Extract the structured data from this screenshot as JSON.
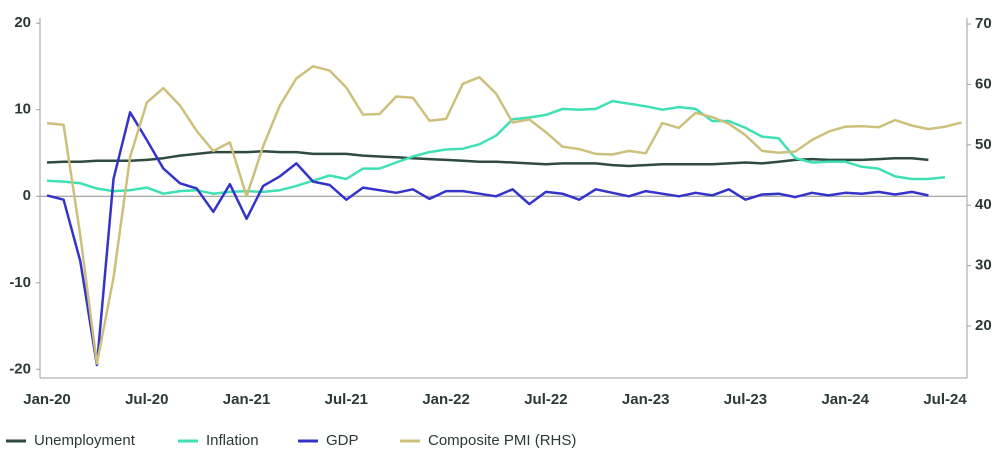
{
  "chart_data": {
    "type": "line",
    "categories": [
      "Jan-20",
      null,
      null,
      null,
      null,
      null,
      "Jul-20",
      null,
      null,
      null,
      null,
      null,
      "Jan-21",
      null,
      null,
      null,
      null,
      null,
      "Jul-21",
      null,
      null,
      null,
      null,
      null,
      "Jan-22",
      null,
      null,
      null,
      null,
      null,
      "Jul-22",
      null,
      null,
      null,
      null,
      null,
      "Jan-23",
      null,
      null,
      null,
      null,
      null,
      "Jul-23",
      null,
      null,
      null,
      null,
      null,
      "Jan-24",
      null,
      null,
      null,
      null,
      null,
      "Jul-24",
      null
    ],
    "series": [
      {
        "name": "Unemployment",
        "color": "#2f4a3e",
        "values": [
          3.9,
          4.0,
          4.0,
          4.1,
          4.1,
          4.1,
          4.2,
          4.4,
          4.7,
          4.9,
          5.1,
          5.1,
          5.1,
          5.2,
          5.1,
          5.1,
          4.9,
          4.9,
          4.9,
          4.7,
          4.6,
          4.5,
          4.4,
          4.3,
          4.2,
          4.1,
          4.0,
          4.0,
          3.9,
          3.8,
          3.7,
          3.8,
          3.8,
          3.8,
          3.6,
          3.5,
          3.6,
          3.7,
          3.7,
          3.7,
          3.7,
          3.8,
          3.9,
          3.8,
          4.0,
          4.2,
          4.3,
          4.2,
          4.2,
          4.2,
          4.3,
          4.4,
          4.4,
          4.2,
          null,
          null
        ]
      },
      {
        "name": "Inflation",
        "color": "#3ee0b4",
        "values": [
          1.8,
          1.7,
          1.5,
          0.9,
          0.6,
          0.7,
          1.0,
          0.3,
          0.6,
          0.7,
          0.3,
          0.5,
          0.6,
          0.5,
          0.7,
          1.2,
          1.8,
          2.4,
          2.0,
          3.2,
          3.2,
          3.9,
          4.6,
          5.1,
          5.4,
          5.5,
          6.0,
          7.0,
          8.9,
          9.1,
          9.4,
          10.1,
          10.0,
          10.1,
          11.0,
          10.7,
          10.4,
          10.0,
          10.3,
          10.1,
          8.7,
          8.7,
          7.9,
          6.9,
          6.7,
          4.4,
          3.9,
          4.0,
          4.0,
          3.4,
          3.2,
          2.3,
          2.0,
          2.0,
          2.2,
          null
        ]
      },
      {
        "name": "GDP",
        "color": "#3434c8",
        "values": [
          0.1,
          -0.4,
          -7.5,
          -19.5,
          2.0,
          9.7,
          6.5,
          3.2,
          1.5,
          0.9,
          -1.8,
          1.4,
          -2.6,
          1.2,
          2.3,
          3.8,
          1.7,
          1.3,
          -0.4,
          1.0,
          0.7,
          0.4,
          0.8,
          -0.3,
          0.6,
          0.6,
          0.3,
          0.0,
          0.8,
          -0.9,
          0.5,
          0.3,
          -0.4,
          0.8,
          0.4,
          0.0,
          0.6,
          0.3,
          0.0,
          0.4,
          0.1,
          0.8,
          -0.4,
          0.2,
          0.3,
          -0.1,
          0.4,
          0.1,
          0.4,
          0.3,
          0.5,
          0.2,
          0.5,
          0.1,
          null,
          null
        ]
      },
      {
        "name": "Composite PMI (RHS)",
        "color": "#cdbf7c",
        "axis": "y2",
        "values": [
          53.6,
          53.3,
          35.0,
          13.8,
          28.0,
          48.0,
          57.0,
          59.4,
          56.5,
          52.3,
          49.0,
          50.4,
          41.5,
          49.8,
          56.5,
          61.0,
          63.0,
          62.3,
          59.5,
          55.0,
          55.1,
          58.0,
          57.8,
          54.0,
          54.3,
          60.1,
          61.2,
          58.5,
          53.7,
          54.2,
          52.1,
          49.7,
          49.3,
          48.5,
          48.4,
          49.0,
          48.6,
          53.6,
          52.8,
          55.3,
          54.6,
          53.5,
          51.6,
          49.0,
          48.7,
          48.9,
          50.8,
          52.2,
          53.0,
          53.1,
          52.9,
          54.1,
          53.2,
          52.6,
          53.0,
          53.7
        ]
      }
    ],
    "ylim": [
      -21,
      20.6
    ],
    "yticks": [
      -20,
      -10,
      0,
      10,
      20
    ],
    "y2lim": [
      11.4,
      71
    ],
    "y2ticks": [
      20,
      30,
      40,
      50,
      60,
      70
    ],
    "zero_line": true
  }
}
